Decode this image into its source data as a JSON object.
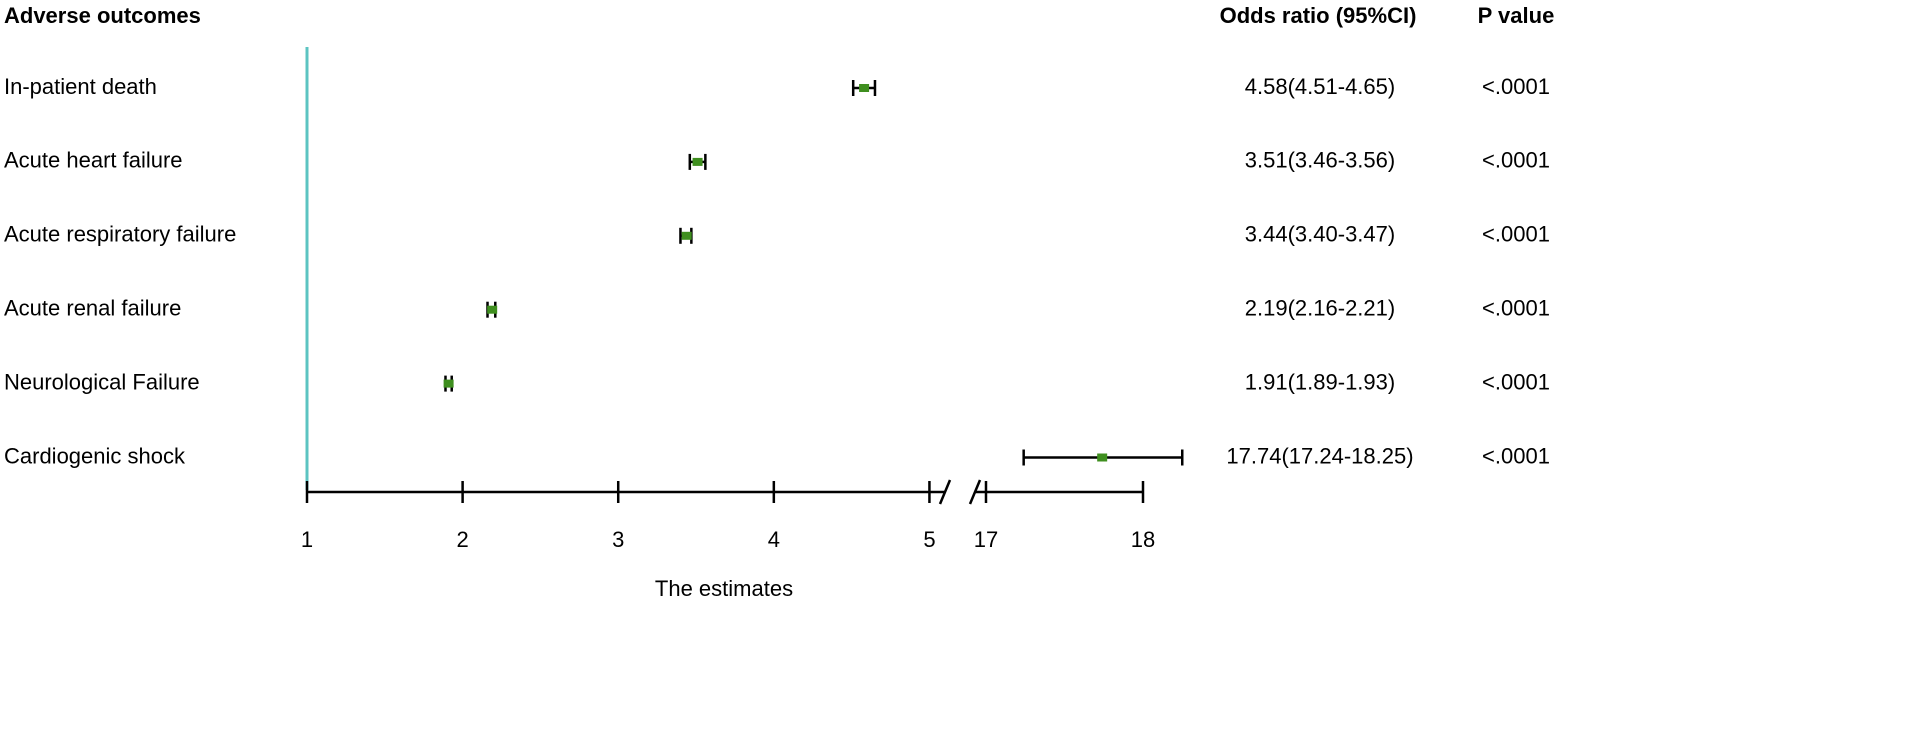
{
  "chart_data": {
    "type": "forest",
    "column_headers": {
      "label": "Adverse outcomes",
      "estimate": "Odds ratio (95%CI)",
      "p": "P value"
    },
    "x_label": "The estimates",
    "categories": [
      "In-patient death",
      "Acute heart failure",
      "Acute respiratory failure",
      "Acute renal failure",
      "Neurological Failure",
      "Cardiogenic shock"
    ],
    "values": [
      4.58,
      3.51,
      3.44,
      2.19,
      1.91,
      17.74
    ],
    "lower": [
      4.51,
      3.46,
      3.4,
      2.16,
      1.89,
      17.24
    ],
    "upper": [
      4.65,
      3.56,
      3.47,
      2.21,
      1.93,
      18.25
    ],
    "value_labels": [
      "4.58(4.51-4.65)",
      "3.51(3.46-3.56)",
      "3.44(3.40-3.47)",
      "2.19(2.16-2.21)",
      "1.91(1.89-1.93)",
      "17.74(17.24-18.25)"
    ],
    "p_values": [
      "<.0001",
      "<.0001",
      "<.0001",
      "<.0001",
      "<.0001",
      "<.0001"
    ],
    "x_segments": [
      {
        "xlim": [
          1,
          5.1
        ],
        "xticks": [
          1,
          2,
          3,
          4,
          5
        ]
      },
      {
        "xlim": [
          16.93,
          18
        ],
        "xticks": [
          17,
          18
        ]
      }
    ],
    "reference": 1,
    "color": "#3f8f1f",
    "reference_color": "#5cc4c2"
  }
}
